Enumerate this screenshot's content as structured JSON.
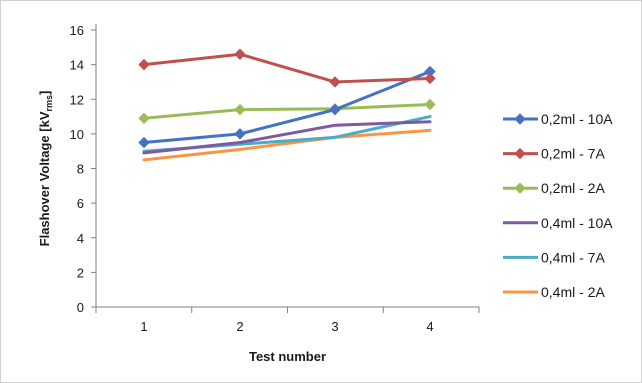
{
  "chart_data": {
    "type": "line",
    "xlabel": "Test number",
    "ylabel_main": "Flashover Voltage [kV",
    "ylabel_sub": "rms",
    "ylabel_end": "]",
    "categories": [
      "1",
      "2",
      "3",
      "4"
    ],
    "ylim": [
      0,
      16
    ],
    "yticks": [
      0,
      2,
      4,
      6,
      8,
      10,
      12,
      14,
      16
    ],
    "grid": false,
    "legend_position": "right",
    "series": [
      {
        "name": "0,2ml - 10A",
        "color": "#4472c4",
        "marker": "diamond",
        "values": [
          9.5,
          10.0,
          11.4,
          13.6
        ]
      },
      {
        "name": "0,2ml - 7A",
        "color": "#c0504d",
        "marker": "diamond",
        "values": [
          14.0,
          14.6,
          13.0,
          13.2
        ]
      },
      {
        "name": "0,2ml - 2A",
        "color": "#9bbb59",
        "marker": "diamond",
        "values": [
          10.9,
          11.4,
          11.45,
          11.7
        ]
      },
      {
        "name": "0,4ml - 10A",
        "color": "#7f5aa2",
        "marker": "none",
        "values": [
          8.9,
          9.5,
          10.5,
          10.7
        ]
      },
      {
        "name": "0,4ml - 7A",
        "color": "#4bacc6",
        "marker": "none",
        "values": [
          9.0,
          9.4,
          9.8,
          11.0
        ]
      },
      {
        "name": "0,4ml - 2A",
        "color": "#f79646",
        "marker": "none",
        "values": [
          8.5,
          9.1,
          9.8,
          10.2
        ]
      }
    ]
  }
}
